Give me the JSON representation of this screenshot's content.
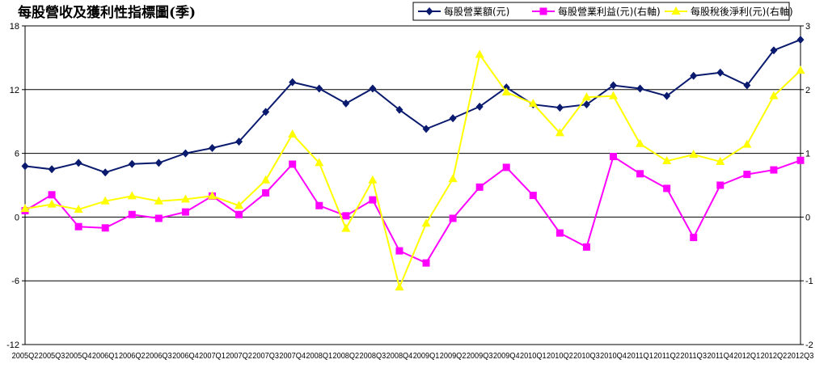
{
  "chart_data": {
    "type": "line",
    "title": "每股營收及獲利性指標圖(季)",
    "categories": [
      "2005Q2",
      "2005Q3",
      "2005Q4",
      "2006Q1",
      "2006Q2",
      "2006Q3",
      "2006Q4",
      "2007Q1",
      "2007Q2",
      "2007Q3",
      "2007Q4",
      "2008Q1",
      "2008Q2",
      "2008Q3",
      "2008Q4",
      "2009Q1",
      "2009Q2",
      "2009Q3",
      "2009Q4",
      "2010Q1",
      "2010Q2",
      "2010Q3",
      "2010Q4",
      "2011Q1",
      "2011Q2",
      "2011Q3",
      "2011Q4",
      "2012Q1",
      "2012Q2",
      "2012Q3"
    ],
    "y_left": {
      "min": -12,
      "max": 18,
      "ticks": [
        "18",
        "12",
        "6",
        "0",
        "-6",
        "-12"
      ]
    },
    "y_right": {
      "min": -2,
      "max": 3,
      "ticks": [
        "3",
        "2",
        "1",
        "0",
        "-1",
        "-2"
      ]
    },
    "grid": "horizontal",
    "legend": "top-right",
    "series": [
      {
        "name": "每股營業額(元)",
        "axis": "left",
        "color": "#0a1a6e",
        "marker": "diamond",
        "values": [
          4.8,
          4.5,
          5.1,
          4.2,
          5.0,
          5.1,
          6.0,
          6.5,
          7.1,
          9.9,
          12.7,
          12.1,
          10.7,
          12.1,
          10.1,
          8.3,
          9.3,
          10.4,
          12.2,
          10.6,
          10.3,
          10.6,
          12.4,
          12.1,
          11.4,
          13.3,
          13.6,
          12.4,
          15.7,
          16.7
        ]
      },
      {
        "name": "每股營業利益(元)(右軸)",
        "axis": "right",
        "color": "#ff00ff",
        "marker": "square",
        "values": [
          0.1,
          0.35,
          -0.15,
          -0.17,
          0.04,
          -0.02,
          0.08,
          0.33,
          0.04,
          0.38,
          0.83,
          0.18,
          0.02,
          0.27,
          -0.53,
          -0.72,
          -0.02,
          0.47,
          0.78,
          0.34,
          -0.25,
          -0.47,
          0.95,
          0.68,
          0.45,
          -0.32,
          0.5,
          0.67,
          0.74,
          0.89
        ]
      },
      {
        "name": "每股稅後淨利(元)(右軸)",
        "axis": "right",
        "color": "#ffff00",
        "marker": "triangle",
        "values": [
          0.13,
          0.2,
          0.12,
          0.25,
          0.33,
          0.25,
          0.28,
          0.33,
          0.18,
          0.58,
          1.3,
          0.85,
          -0.18,
          0.58,
          -1.1,
          -0.1,
          0.6,
          2.55,
          1.96,
          1.78,
          1.32,
          1.88,
          1.9,
          1.15,
          0.88,
          0.98,
          0.87,
          1.14,
          1.9,
          2.3
        ]
      }
    ]
  }
}
